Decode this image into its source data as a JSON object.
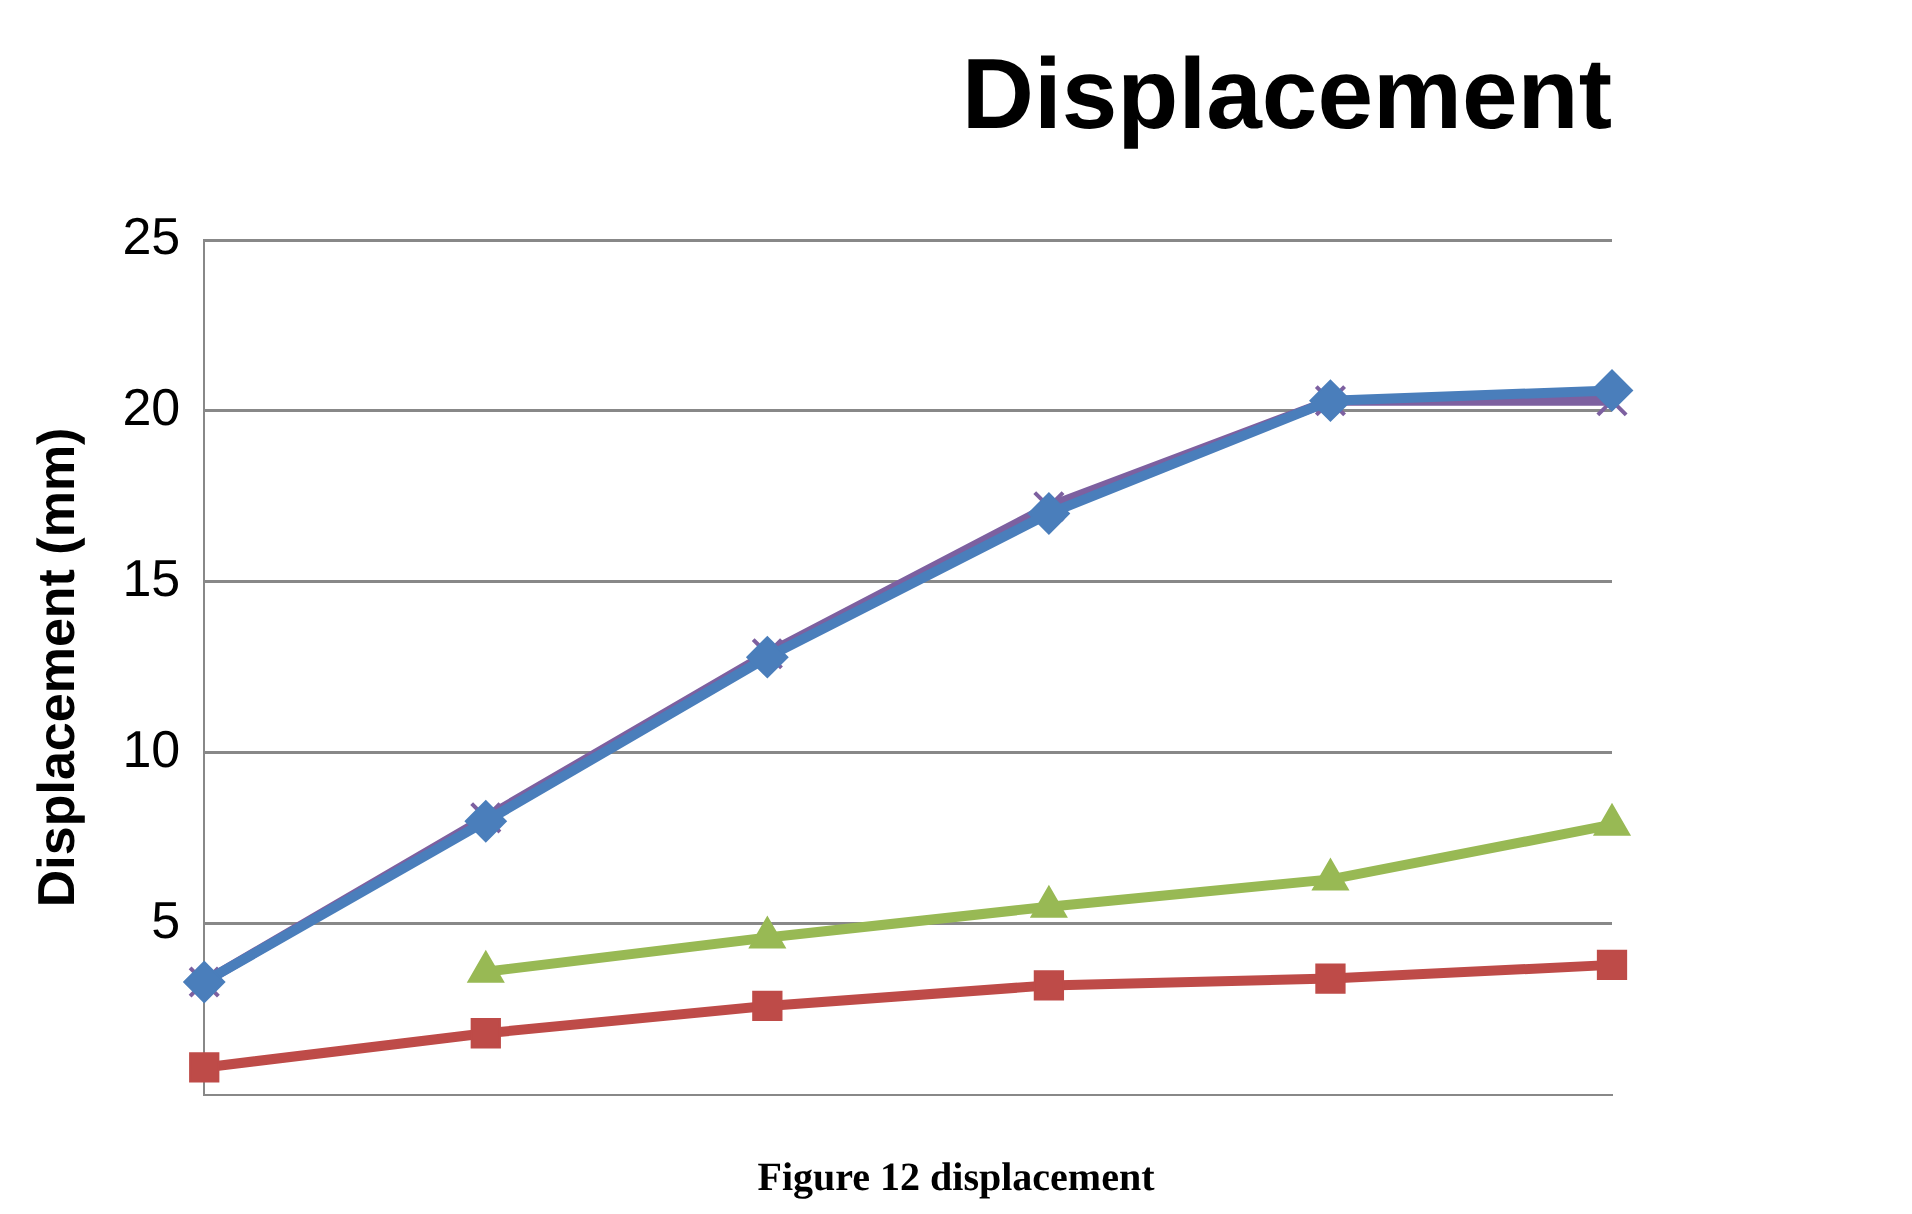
{
  "chart_data": {
    "type": "line",
    "title": "Displacement",
    "ylabel": "Displacement (mm)",
    "annotations": [
      "Figure 12 displacement"
    ],
    "categories": [
      null,
      null,
      null,
      null,
      null,
      null
    ],
    "ylim": [
      0,
      25
    ],
    "yticks": [
      5,
      10,
      15,
      20,
      25
    ],
    "grid": "y",
    "tick_labels": "y",
    "legend": false,
    "series": [
      {
        "color": "#4a7ebb",
        "marker": "diamond",
        "values": [
          3.3,
          8.0,
          12.8,
          17.0,
          20.3,
          20.6
        ]
      },
      {
        "color": "#be4b48",
        "marker": "square",
        "values": [
          0.8,
          1.8,
          2.6,
          3.2,
          3.4,
          3.8
        ]
      },
      {
        "color": "#98b954",
        "marker": "triangle",
        "values": [
          null,
          3.6,
          4.6,
          5.5,
          6.3,
          7.9
        ]
      },
      {
        "color": "#7d60a0",
        "marker": "cross",
        "values": [
          3.3,
          8.1,
          12.9,
          17.2,
          20.3,
          20.3
        ]
      }
    ]
  }
}
